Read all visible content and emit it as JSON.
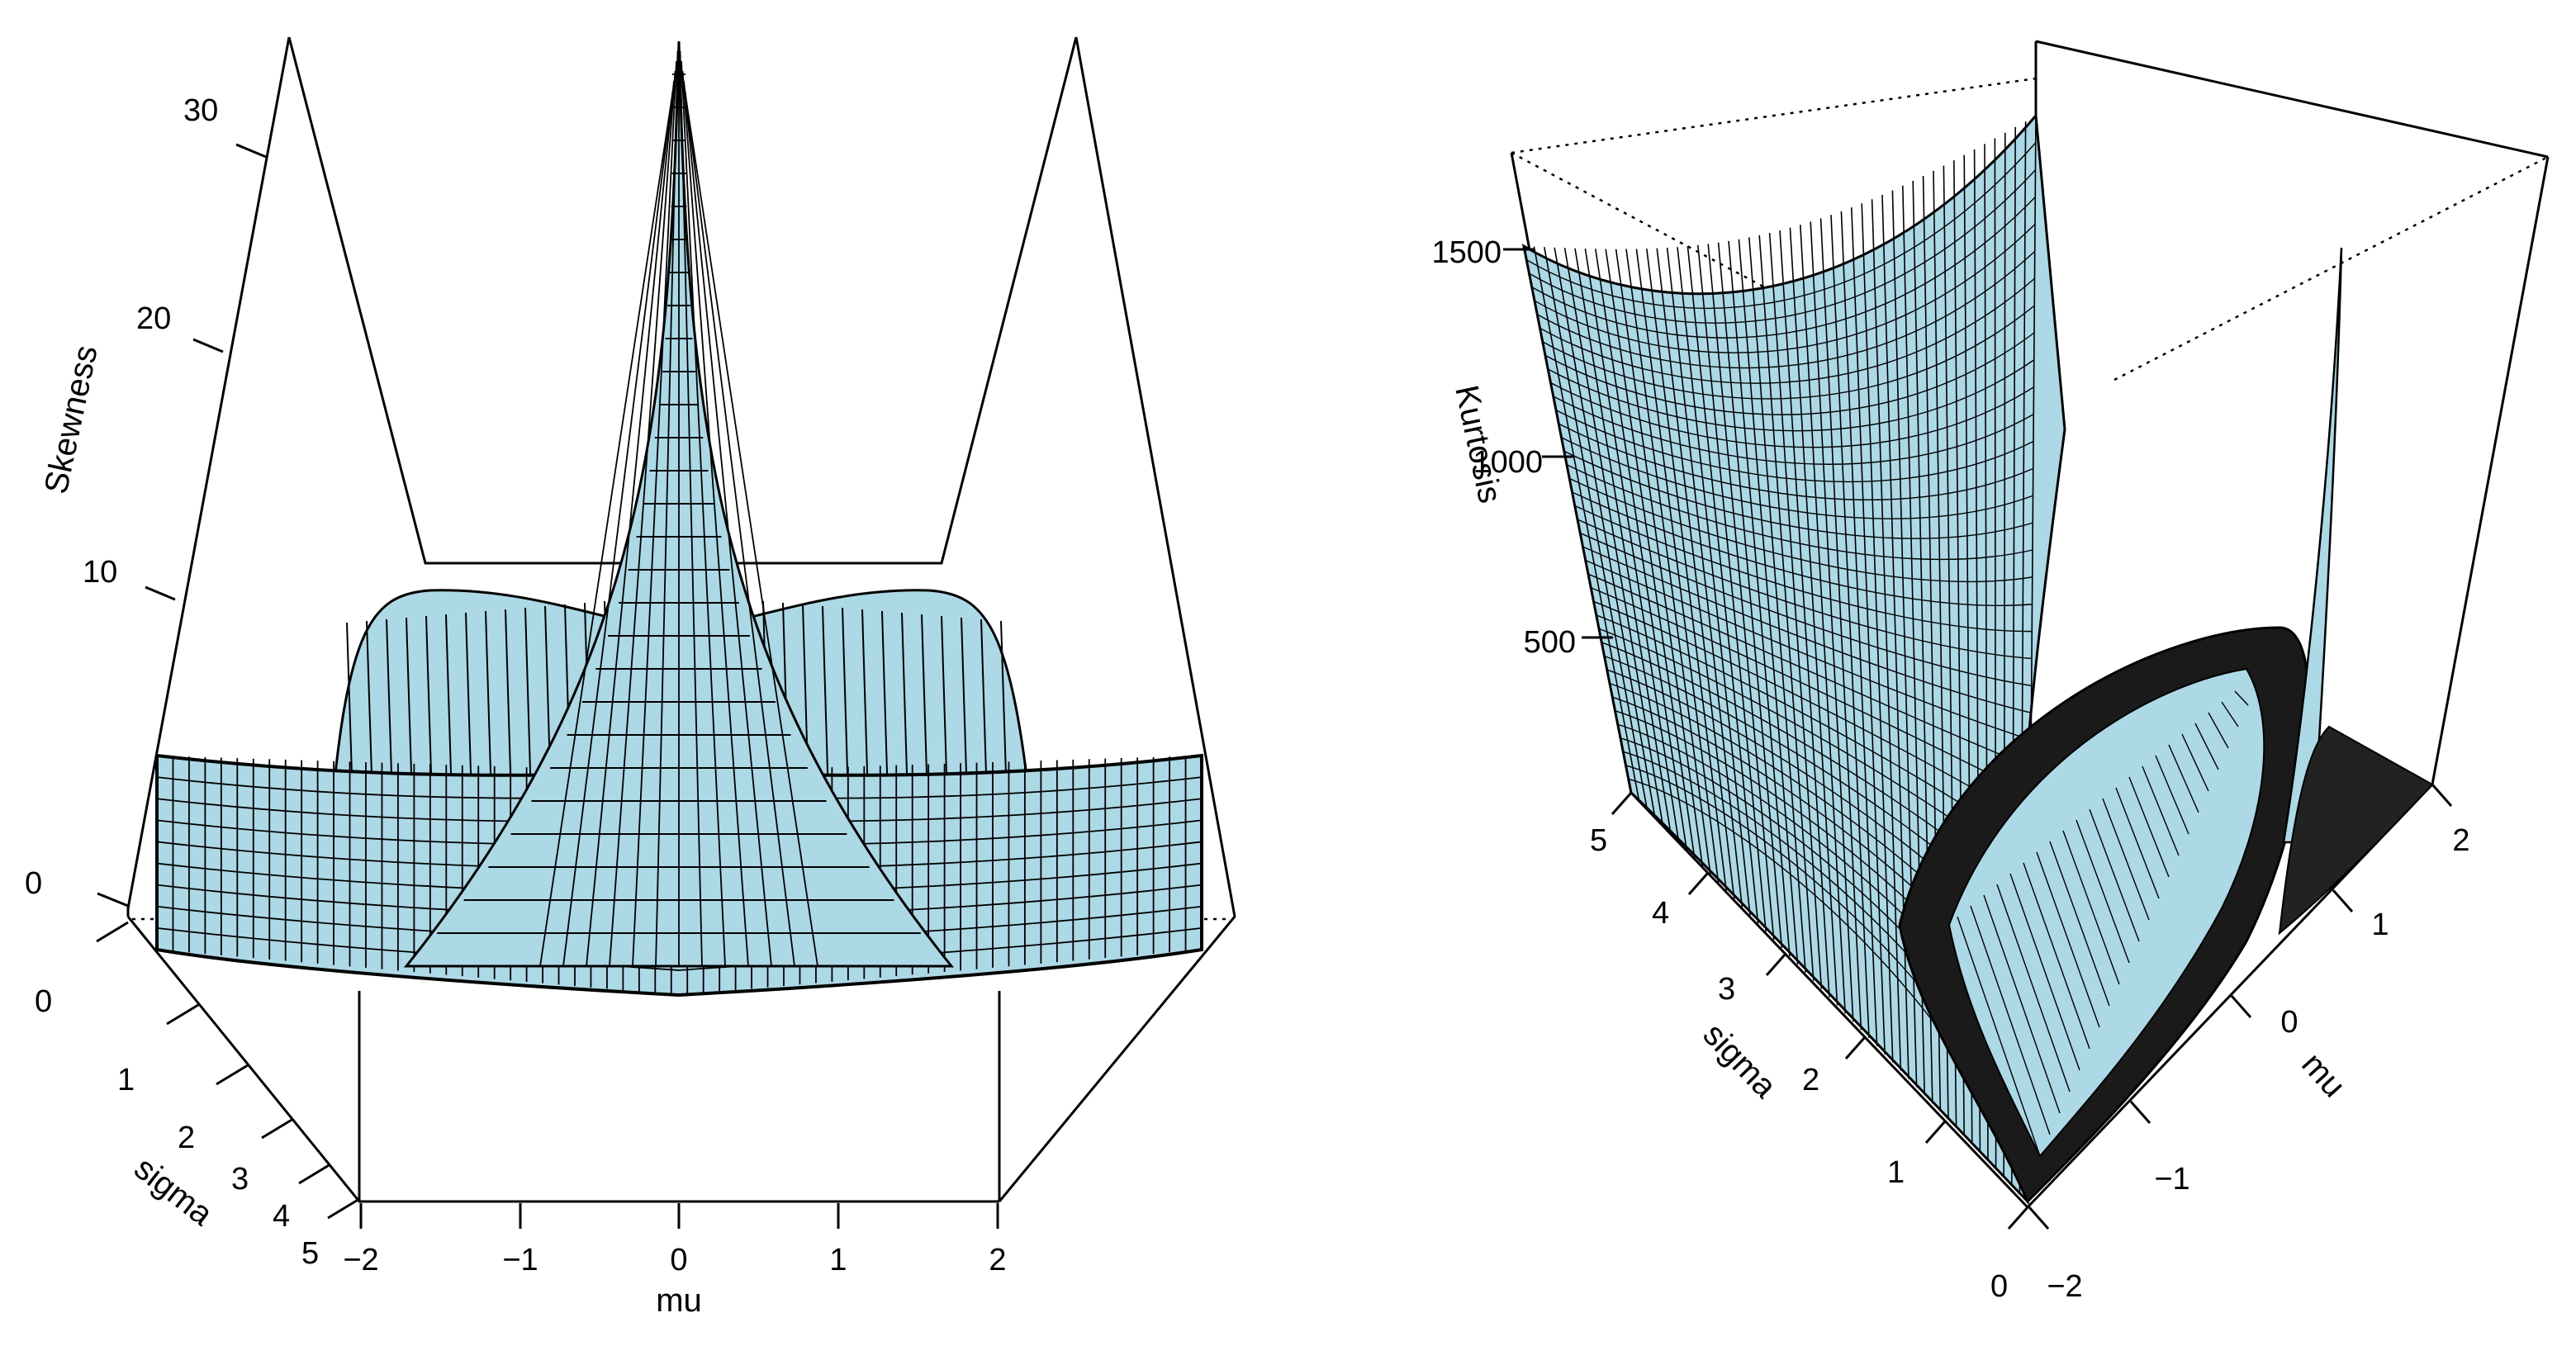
{
  "colors": {
    "surface": "#add8e6",
    "mesh": "#000000",
    "background": "#ffffff"
  },
  "chart_data": [
    {
      "type": "surface3d",
      "zlabel": "Skewness",
      "xlabel": "mu",
      "ylabel": "sigma",
      "x_ticks": [
        "−2",
        "−1",
        "0",
        "1",
        "2"
      ],
      "y_ticks": [
        "0",
        "1",
        "2",
        "3",
        "4",
        "5"
      ],
      "z_ticks": [
        "0",
        "10",
        "20",
        "30"
      ],
      "xlim": [
        -2,
        2
      ],
      "ylim": [
        0,
        5
      ],
      "zlim": [
        0,
        35
      ],
      "series": [
        {
          "peak": {
            "mu": 0,
            "sigma": 0.1,
            "value": 35
          },
          "values_along_mu_at_sigma_0_5": [
            {
              "mu": -2,
              "value": 4.1
            },
            {
              "mu": -1.5,
              "value": 3.0
            },
            {
              "mu": -1,
              "value": 2.0
            },
            {
              "mu": -0.5,
              "value": 3.2
            },
            {
              "mu": 0,
              "value": 10.0
            },
            {
              "mu": 0.5,
              "value": 3.2
            },
            {
              "mu": 1,
              "value": 2.0
            },
            {
              "mu": 1.5,
              "value": 3.0
            },
            {
              "mu": 2,
              "value": 4.1
            }
          ],
          "ridge_value_at_large_sigma": 9.5
        }
      ]
    },
    {
      "type": "surface3d",
      "zlabel": "Kurtosis",
      "xlabel": "mu",
      "ylabel": "sigma",
      "x_ticks": [
        "−2",
        "−1",
        "0",
        "1",
        "2"
      ],
      "y_ticks": [
        "0",
        "1",
        "2",
        "3",
        "4",
        "5"
      ],
      "z_ticks": [
        "500",
        "1000",
        "1500"
      ],
      "xlim": [
        -2,
        2
      ],
      "ylim": [
        0,
        5
      ],
      "zlim": [
        0,
        1750
      ],
      "series": [
        {
          "values_along_sigma_at_mu_minus_2": [
            {
              "sigma": 1,
              "value": 5
            },
            {
              "sigma": 2,
              "value": 60
            },
            {
              "sigma": 3,
              "value": 300
            },
            {
              "sigma": 4,
              "value": 900
            },
            {
              "sigma": 5,
              "value": 1500
            }
          ],
          "peak_near_mu_0_sigma_0": 1750,
          "ridge_value_at_sigma_1_5": 380
        }
      ]
    }
  ]
}
